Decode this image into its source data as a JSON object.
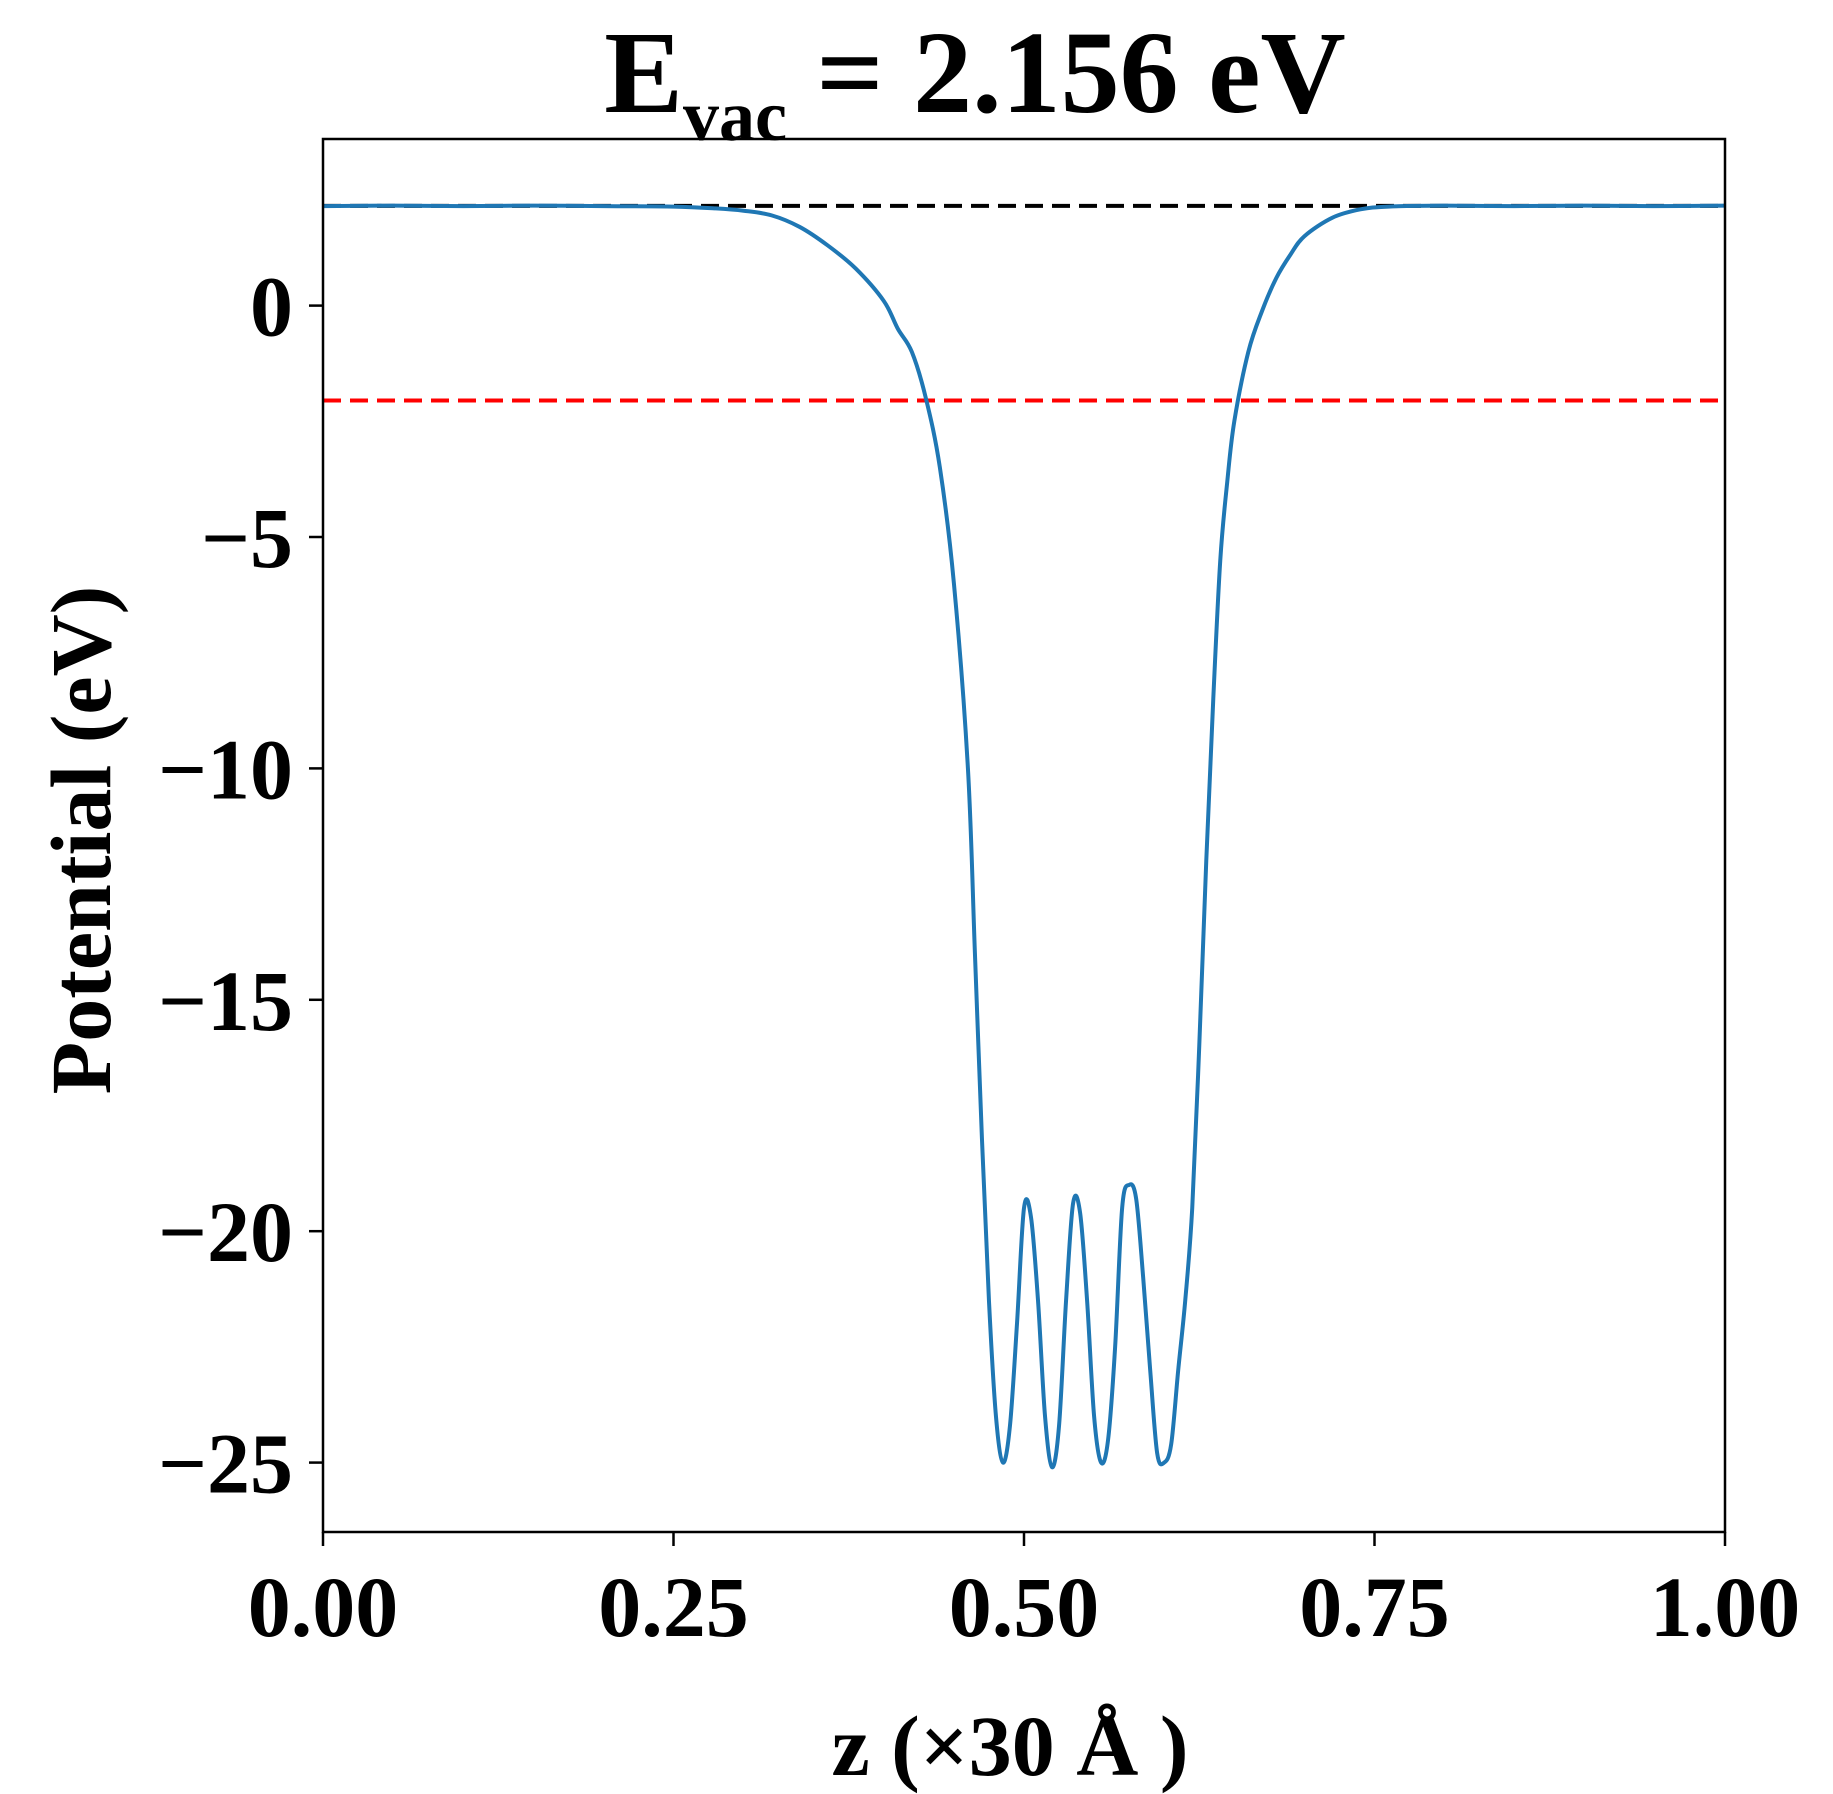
{
  "chart_data": {
    "type": "line",
    "title": "E",
    "title_subscript": "vac",
    "title_rest": " = 2.156 eV",
    "xlabel": "z (×30 Å )",
    "ylabel": "Potential (eV)",
    "xlim": [
      0,
      1
    ],
    "ylim": [
      -26.5,
      3.6
    ],
    "xticks": [
      0,
      0.25,
      0.5,
      0.75,
      1.0
    ],
    "xtick_labels": [
      "0.00",
      "0.25",
      "0.50",
      "0.75",
      "1.00"
    ],
    "yticks": [
      0,
      -5,
      -10,
      -15,
      -20,
      -25
    ],
    "ytick_labels": [
      "0",
      "−5",
      "−10",
      "−15",
      "−20",
      "−25"
    ],
    "grid": false,
    "hlines": [
      {
        "y": 2.156,
        "color": "#000000",
        "style": "dashed"
      },
      {
        "y": -2.05,
        "color": "#ff0000",
        "style": "dashed"
      }
    ],
    "series": [
      {
        "color": "#1f77b4",
        "x": [
          0.0,
          0.05,
          0.1,
          0.15,
          0.2,
          0.25,
          0.28,
          0.3,
          0.32,
          0.34,
          0.36,
          0.38,
          0.4,
          0.41,
          0.42,
          0.43,
          0.44,
          0.45,
          0.46,
          0.465,
          0.47,
          0.475,
          0.48,
          0.485,
          0.49,
          0.495,
          0.5,
          0.505,
          0.51,
          0.515,
          0.52,
          0.525,
          0.53,
          0.535,
          0.54,
          0.545,
          0.55,
          0.555,
          0.56,
          0.565,
          0.57,
          0.575,
          0.58,
          0.585,
          0.59,
          0.595,
          0.6,
          0.605,
          0.61,
          0.615,
          0.62,
          0.625,
          0.63,
          0.635,
          0.64,
          0.645,
          0.65,
          0.66,
          0.67,
          0.68,
          0.69,
          0.7,
          0.72,
          0.74,
          0.76,
          0.8,
          0.85,
          0.9,
          0.95,
          1.0
        ],
        "y": [
          2.15,
          2.16,
          2.15,
          2.16,
          2.15,
          2.14,
          2.1,
          2.05,
          1.95,
          1.7,
          1.3,
          0.8,
          0.1,
          -0.5,
          -1.0,
          -2.0,
          -3.5,
          -6.0,
          -10.0,
          -14.0,
          -18.0,
          -21.5,
          -24.0,
          -25.0,
          -24.2,
          -22.0,
          -19.5,
          -19.7,
          -21.5,
          -24.0,
          -25.1,
          -24.2,
          -21.5,
          -19.4,
          -19.6,
          -21.5,
          -24.0,
          -25.0,
          -24.5,
          -22.5,
          -19.5,
          -19.0,
          -19.3,
          -21.0,
          -23.0,
          -24.8,
          -25.0,
          -24.6,
          -23.0,
          -21.5,
          -19.5,
          -16.0,
          -12.0,
          -8.5,
          -5.5,
          -3.8,
          -2.5,
          -1.0,
          -0.1,
          0.6,
          1.1,
          1.5,
          1.9,
          2.08,
          2.14,
          2.16,
          2.15,
          2.16,
          2.15,
          2.16
        ]
      }
    ]
  }
}
